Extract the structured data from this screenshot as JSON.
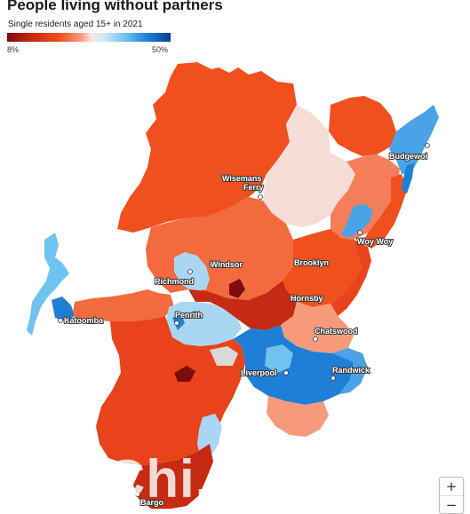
{
  "title": "People living without partners",
  "subtitle": "Single residents aged 15+ in 2021",
  "legend": {
    "min_label": "8%",
    "max_label": "50%",
    "min_color": "#7f0c0c",
    "max_color": "#0b3f8f"
  },
  "places": [
    {
      "name": "Budgewoi"
    },
    {
      "name": "Wisemans"
    },
    {
      "name": "Ferry"
    },
    {
      "name": "Woy Woy"
    },
    {
      "name": "Windsor"
    },
    {
      "name": "Brooklyn"
    },
    {
      "name": "Richmond"
    },
    {
      "name": "Hornsby"
    },
    {
      "name": "Penrith"
    },
    {
      "name": "Katoomba"
    },
    {
      "name": "Chatswood"
    },
    {
      "name": "Liverpool"
    },
    {
      "name": "Randwick"
    },
    {
      "name": "Bargo"
    }
  ],
  "watermark": "Chi...",
  "zoom": {
    "in_label": "+",
    "out_label": "−"
  }
}
